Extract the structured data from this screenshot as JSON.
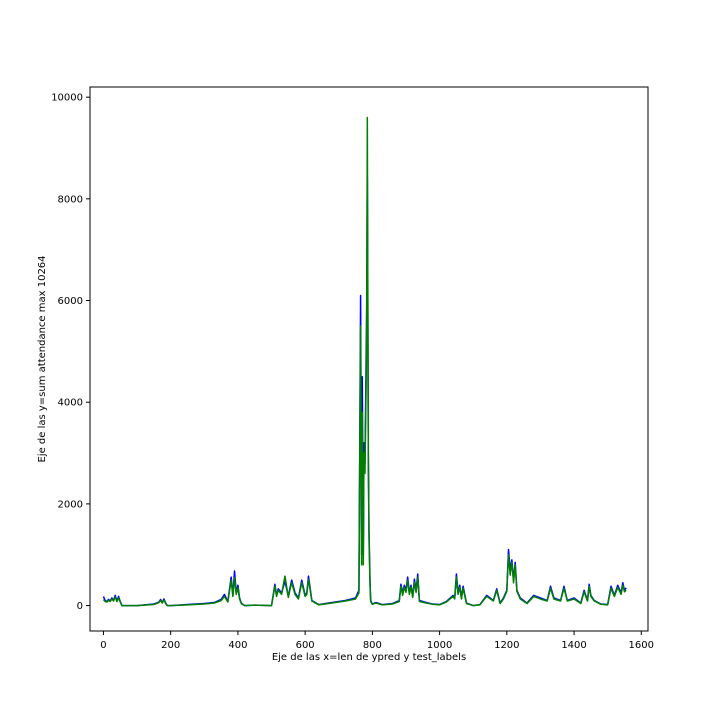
{
  "chart_data": {
    "type": "line",
    "title": "",
    "xlabel": "Eje de las x=len de ypred y test_labels",
    "ylabel": "Eje de las y=sum attendance max 10264",
    "xlim": [
      -40,
      1620
    ],
    "ylim": [
      -500,
      10200
    ],
    "xticks": [
      0,
      200,
      400,
      600,
      800,
      1000,
      1200,
      1400,
      1600
    ],
    "yticks": [
      0,
      2000,
      4000,
      6000,
      8000,
      10000
    ],
    "grid": false,
    "legend": "none",
    "colors": {
      "series_1": "#0000ff",
      "series_2": "#008000"
    },
    "series": [
      {
        "color": "#0000ff",
        "x": [
          0,
          5,
          10,
          15,
          20,
          25,
          30,
          35,
          40,
          45,
          50,
          55,
          60,
          100,
          150,
          165,
          170,
          175,
          180,
          185,
          190,
          200,
          250,
          300,
          330,
          350,
          360,
          370,
          380,
          385,
          390,
          395,
          400,
          405,
          410,
          420,
          450,
          500,
          510,
          515,
          520,
          530,
          540,
          550,
          555,
          560,
          570,
          580,
          590,
          600,
          605,
          610,
          620,
          640,
          680,
          720,
          750,
          760,
          765,
          768,
          770,
          773,
          775,
          778,
          780,
          783,
          785,
          788,
          790,
          793,
          795,
          800,
          810,
          830,
          860,
          880,
          885,
          890,
          895,
          900,
          905,
          910,
          915,
          920,
          925,
          930,
          935,
          940,
          960,
          980,
          1000,
          1020,
          1040,
          1045,
          1050,
          1055,
          1060,
          1065,
          1070,
          1080,
          1100,
          1120,
          1140,
          1160,
          1170,
          1180,
          1190,
          1200,
          1205,
          1210,
          1215,
          1220,
          1225,
          1230,
          1240,
          1260,
          1280,
          1300,
          1320,
          1330,
          1340,
          1360,
          1370,
          1380,
          1400,
          1420,
          1430,
          1440,
          1445,
          1450,
          1460,
          1480,
          1500,
          1510,
          1520,
          1530,
          1540,
          1545,
          1550,
          1555
        ],
        "y": [
          180,
          100,
          80,
          120,
          90,
          150,
          100,
          200,
          90,
          180,
          80,
          0,
          0,
          0,
          30,
          70,
          120,
          60,
          130,
          50,
          0,
          0,
          20,
          40,
          60,
          120,
          220,
          80,
          560,
          200,
          680,
          250,
          400,
          150,
          50,
          0,
          10,
          0,
          420,
          200,
          330,
          250,
          480,
          180,
          350,
          500,
          250,
          150,
          500,
          200,
          250,
          580,
          100,
          20,
          60,
          100,
          150,
          300,
          6100,
          1000,
          4500,
          900,
          3200,
          2800,
          4000,
          5800,
          8400,
          3000,
          1500,
          500,
          100,
          30,
          60,
          20,
          40,
          100,
          420,
          250,
          400,
          300,
          560,
          250,
          400,
          180,
          520,
          300,
          620,
          100,
          60,
          30,
          20,
          80,
          200,
          150,
          620,
          250,
          400,
          150,
          380,
          50,
          0,
          20,
          200,
          100,
          330,
          50,
          150,
          300,
          1100,
          700,
          900,
          500,
          850,
          300,
          150,
          50,
          200,
          150,
          100,
          380,
          150,
          100,
          380,
          100,
          150,
          50,
          300,
          100,
          420,
          200,
          100,
          30,
          20,
          380,
          200,
          400,
          250,
          450,
          300,
          350
        ]
      },
      {
        "color": "#008000",
        "x": [
          0,
          5,
          10,
          15,
          20,
          25,
          30,
          35,
          40,
          45,
          50,
          55,
          60,
          100,
          150,
          165,
          170,
          175,
          180,
          185,
          190,
          200,
          250,
          300,
          330,
          350,
          360,
          370,
          380,
          385,
          390,
          395,
          400,
          405,
          410,
          420,
          450,
          500,
          510,
          515,
          520,
          530,
          540,
          550,
          555,
          560,
          570,
          580,
          590,
          600,
          605,
          610,
          620,
          640,
          680,
          720,
          750,
          760,
          765,
          768,
          770,
          773,
          775,
          778,
          780,
          783,
          785,
          788,
          790,
          793,
          795,
          800,
          810,
          830,
          860,
          880,
          885,
          890,
          895,
          900,
          905,
          910,
          915,
          920,
          925,
          930,
          935,
          940,
          960,
          980,
          1000,
          1020,
          1040,
          1045,
          1050,
          1055,
          1060,
          1065,
          1070,
          1080,
          1100,
          1120,
          1140,
          1160,
          1170,
          1180,
          1190,
          1200,
          1205,
          1210,
          1215,
          1220,
          1225,
          1230,
          1240,
          1260,
          1280,
          1300,
          1320,
          1330,
          1340,
          1360,
          1370,
          1380,
          1400,
          1420,
          1430,
          1440,
          1445,
          1450,
          1460,
          1480,
          1500,
          1510,
          1520,
          1530,
          1540,
          1545,
          1550,
          1555
        ],
        "y": [
          120,
          80,
          70,
          100,
          80,
          130,
          90,
          170,
          80,
          150,
          70,
          0,
          0,
          0,
          20,
          60,
          100,
          50,
          110,
          40,
          0,
          0,
          15,
          30,
          50,
          100,
          180,
          70,
          500,
          180,
          550,
          220,
          350,
          130,
          40,
          0,
          10,
          0,
          380,
          180,
          300,
          220,
          580,
          160,
          320,
          450,
          220,
          130,
          450,
          180,
          220,
          520,
          90,
          15,
          50,
          90,
          130,
          250,
          5500,
          800,
          3800,
          800,
          3000,
          2600,
          3600,
          5200,
          9600,
          2800,
          1300,
          400,
          80,
          25,
          50,
          15,
          30,
          80,
          380,
          200,
          360,
          260,
          500,
          220,
          360,
          160,
          460,
          260,
          560,
          80,
          50,
          25,
          15,
          70,
          180,
          130,
          560,
          220,
          360,
          130,
          340,
          40,
          0,
          15,
          180,
          90,
          300,
          40,
          130,
          280,
          1000,
          600,
          850,
          450,
          800,
          280,
          130,
          40,
          180,
          130,
          90,
          340,
          130,
          90,
          340,
          90,
          130,
          40,
          270,
          90,
          380,
          180,
          90,
          25,
          15,
          340,
          180,
          360,
          220,
          400,
          270,
          300
        ]
      }
    ]
  }
}
